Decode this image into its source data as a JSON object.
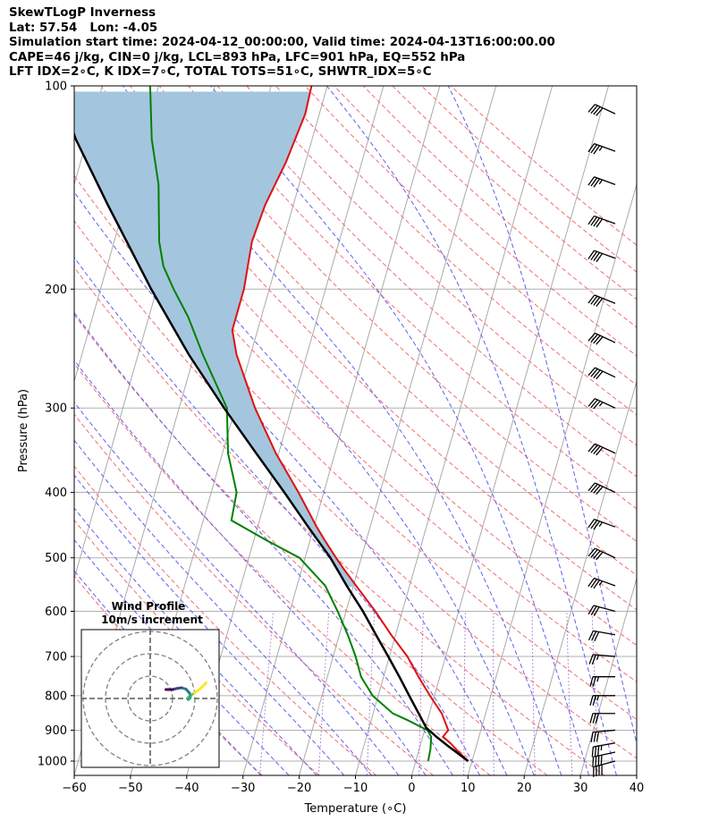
{
  "header": {
    "line1": "SkewTLogP Inverness",
    "line2": "Lat: 57.54   Lon: -4.05",
    "line3": "Simulation start time: 2024-04-12_00:00:00, Valid time: 2024-04-13T16:00:00.00",
    "line4": "CAPE=46 j/kg, CIN=0 j/kg, LCL=893 hPa, LFC=901 hPa, EQ=552 hPa",
    "line5": "LFT IDX=2∘C, K IDX=7∘C, TOTAL TOTS=51∘C, SHWTR_IDX=5∘C"
  },
  "colors": {
    "temperature": "#e01010",
    "dewpoint": "#008000",
    "parcel": "#000000",
    "cape_fill": "#a3c6de",
    "dry_adiabat": "#f07070",
    "moist_adiabat": "#6060ee",
    "isotherm": "#aaaaaa",
    "mixing_ratio": "#9040c0",
    "grid": "#b0b0b0"
  },
  "chart_data": {
    "type": "skewt",
    "xlabel": "Temperature (∘C)",
    "ylabel": "Pressure (hPa)",
    "xlim": [
      -60,
      40
    ],
    "ylim": [
      1050,
      100
    ],
    "x_ticks": [
      -60,
      -50,
      -40,
      -30,
      -20,
      -10,
      0,
      10,
      20,
      30,
      40
    ],
    "x_tick_labels": [
      "−60",
      "−50",
      "−40",
      "−30",
      "−20",
      "−10",
      "0",
      "10",
      "20",
      "30",
      "40"
    ],
    "y_ticks": [
      1000,
      900,
      800,
      700,
      600,
      500,
      400,
      300,
      200,
      100
    ],
    "y_tick_labels": [
      "1000",
      "900",
      "800",
      "700",
      "600",
      "500",
      "400",
      "300",
      "200",
      "100"
    ],
    "temperature_profile": [
      {
        "p": 1000,
        "t": 9.3
      },
      {
        "p": 970,
        "t": 7.2
      },
      {
        "p": 940,
        "t": 5.2
      },
      {
        "p": 920,
        "t": 3.6
      },
      {
        "p": 900,
        "t": 4.2
      },
      {
        "p": 850,
        "t": 2.2
      },
      {
        "p": 800,
        "t": -0.8
      },
      {
        "p": 750,
        "t": -3.8
      },
      {
        "p": 700,
        "t": -6.8
      },
      {
        "p": 650,
        "t": -10.8
      },
      {
        "p": 600,
        "t": -14.8
      },
      {
        "p": 550,
        "t": -19.5
      },
      {
        "p": 520,
        "t": -22.5
      },
      {
        "p": 500,
        "t": -24.5
      },
      {
        "p": 470,
        "t": -27.5
      },
      {
        "p": 450,
        "t": -29.5
      },
      {
        "p": 400,
        "t": -34.5
      },
      {
        "p": 350,
        "t": -40.5
      },
      {
        "p": 300,
        "t": -46.5
      },
      {
        "p": 250,
        "t": -52.5
      },
      {
        "p": 230,
        "t": -54.5
      },
      {
        "p": 200,
        "t": -54.5
      },
      {
        "p": 170,
        "t": -55.5
      },
      {
        "p": 150,
        "t": -55.0
      },
      {
        "p": 130,
        "t": -53.5
      },
      {
        "p": 110,
        "t": -52.5
      },
      {
        "p": 100,
        "t": -52.8
      }
    ],
    "dewpoint_profile": [
      {
        "p": 1000,
        "dp": 2.2
      },
      {
        "p": 960,
        "dp": 2.0
      },
      {
        "p": 920,
        "dp": 1.5
      },
      {
        "p": 900,
        "dp": 0.5
      },
      {
        "p": 870,
        "dp": -3.5
      },
      {
        "p": 850,
        "dp": -6.5
      },
      {
        "p": 800,
        "dp": -11.0
      },
      {
        "p": 750,
        "dp": -14.0
      },
      {
        "p": 700,
        "dp": -16.0
      },
      {
        "p": 650,
        "dp": -18.5
      },
      {
        "p": 600,
        "dp": -21.5
      },
      {
        "p": 550,
        "dp": -25.0
      },
      {
        "p": 500,
        "dp": -31.0
      },
      {
        "p": 470,
        "dp": -38.0
      },
      {
        "p": 440,
        "dp": -45.0
      },
      {
        "p": 400,
        "dp": -45.5
      },
      {
        "p": 350,
        "dp": -49.0
      },
      {
        "p": 300,
        "dp": -51.5
      },
      {
        "p": 250,
        "dp": -58.5
      },
      {
        "p": 220,
        "dp": -63.0
      },
      {
        "p": 200,
        "dp": -67.0
      },
      {
        "p": 185,
        "dp": -70.0
      },
      {
        "p": 170,
        "dp": -72.0
      },
      {
        "p": 140,
        "dp": -75.0
      },
      {
        "p": 120,
        "dp": -78.5
      },
      {
        "p": 100,
        "dp": -81.5
      }
    ],
    "parcel_profile": [
      {
        "p": 1000,
        "t": 9.3
      },
      {
        "p": 950,
        "t": 5.0
      },
      {
        "p": 920,
        "t": 2.4
      },
      {
        "p": 893,
        "t": 0.2
      },
      {
        "p": 850,
        "t": -1.9
      },
      {
        "p": 800,
        "t": -4.5
      },
      {
        "p": 750,
        "t": -7.2
      },
      {
        "p": 700,
        "t": -10.2
      },
      {
        "p": 650,
        "t": -13.5
      },
      {
        "p": 600,
        "t": -17.0
      },
      {
        "p": 552,
        "t": -21.0
      },
      {
        "p": 500,
        "t": -25.5
      },
      {
        "p": 450,
        "t": -31.0
      },
      {
        "p": 400,
        "t": -37.0
      },
      {
        "p": 350,
        "t": -44.0
      },
      {
        "p": 300,
        "t": -52.0
      },
      {
        "p": 250,
        "t": -61.0
      },
      {
        "p": 200,
        "t": -71.0
      },
      {
        "p": 150,
        "t": -83.0
      },
      {
        "p": 120,
        "t": -92.0
      },
      {
        "p": 100,
        "t": -98.0
      }
    ],
    "wind_barbs": [
      {
        "p": 1000,
        "speed_kt": 40,
        "dir_deg": 255
      },
      {
        "p": 970,
        "speed_kt": 40,
        "dir_deg": 258
      },
      {
        "p": 940,
        "speed_kt": 35,
        "dir_deg": 260
      },
      {
        "p": 900,
        "speed_kt": 30,
        "dir_deg": 265
      },
      {
        "p": 850,
        "speed_kt": 30,
        "dir_deg": 270
      },
      {
        "p": 800,
        "speed_kt": 25,
        "dir_deg": 270
      },
      {
        "p": 750,
        "speed_kt": 25,
        "dir_deg": 270
      },
      {
        "p": 700,
        "speed_kt": 25,
        "dir_deg": 275
      },
      {
        "p": 650,
        "speed_kt": 30,
        "dir_deg": 280
      },
      {
        "p": 600,
        "speed_kt": 30,
        "dir_deg": 285
      },
      {
        "p": 550,
        "speed_kt": 35,
        "dir_deg": 290
      },
      {
        "p": 500,
        "speed_kt": 40,
        "dir_deg": 295
      },
      {
        "p": 450,
        "speed_kt": 35,
        "dir_deg": 290
      },
      {
        "p": 400,
        "speed_kt": 40,
        "dir_deg": 295
      },
      {
        "p": 350,
        "speed_kt": 40,
        "dir_deg": 295
      },
      {
        "p": 300,
        "speed_kt": 35,
        "dir_deg": 295
      },
      {
        "p": 270,
        "speed_kt": 40,
        "dir_deg": 295
      },
      {
        "p": 240,
        "speed_kt": 40,
        "dir_deg": 295
      },
      {
        "p": 210,
        "speed_kt": 40,
        "dir_deg": 292
      },
      {
        "p": 180,
        "speed_kt": 40,
        "dir_deg": 290
      },
      {
        "p": 160,
        "speed_kt": 40,
        "dir_deg": 290
      },
      {
        "p": 140,
        "speed_kt": 35,
        "dir_deg": 290
      },
      {
        "p": 125,
        "speed_kt": 35,
        "dir_deg": 290
      },
      {
        "p": 110,
        "speed_kt": 40,
        "dir_deg": 295
      }
    ],
    "inset": {
      "title": "Wind Profile",
      "subtitle": "10m/s increment",
      "rings_ms": [
        10,
        20,
        30
      ],
      "hodograph": [
        {
          "u": 25.0,
          "v": 7.0
        },
        {
          "u": 22.0,
          "v": 4.0
        },
        {
          "u": 19.0,
          "v": 2.0
        },
        {
          "u": 17.0,
          "v": 0.5
        },
        {
          "u": 17.0,
          "v": -0.5
        },
        {
          "u": 18.0,
          "v": 1.0
        },
        {
          "u": 17.5,
          "v": 2.5
        },
        {
          "u": 16.0,
          "v": 4.2
        },
        {
          "u": 14.0,
          "v": 4.8
        },
        {
          "u": 12.0,
          "v": 4.5
        },
        {
          "u": 10.0,
          "v": 4.0
        },
        {
          "u": 8.0,
          "v": 4.0
        },
        {
          "u": 7.0,
          "v": 4.0
        }
      ]
    }
  }
}
